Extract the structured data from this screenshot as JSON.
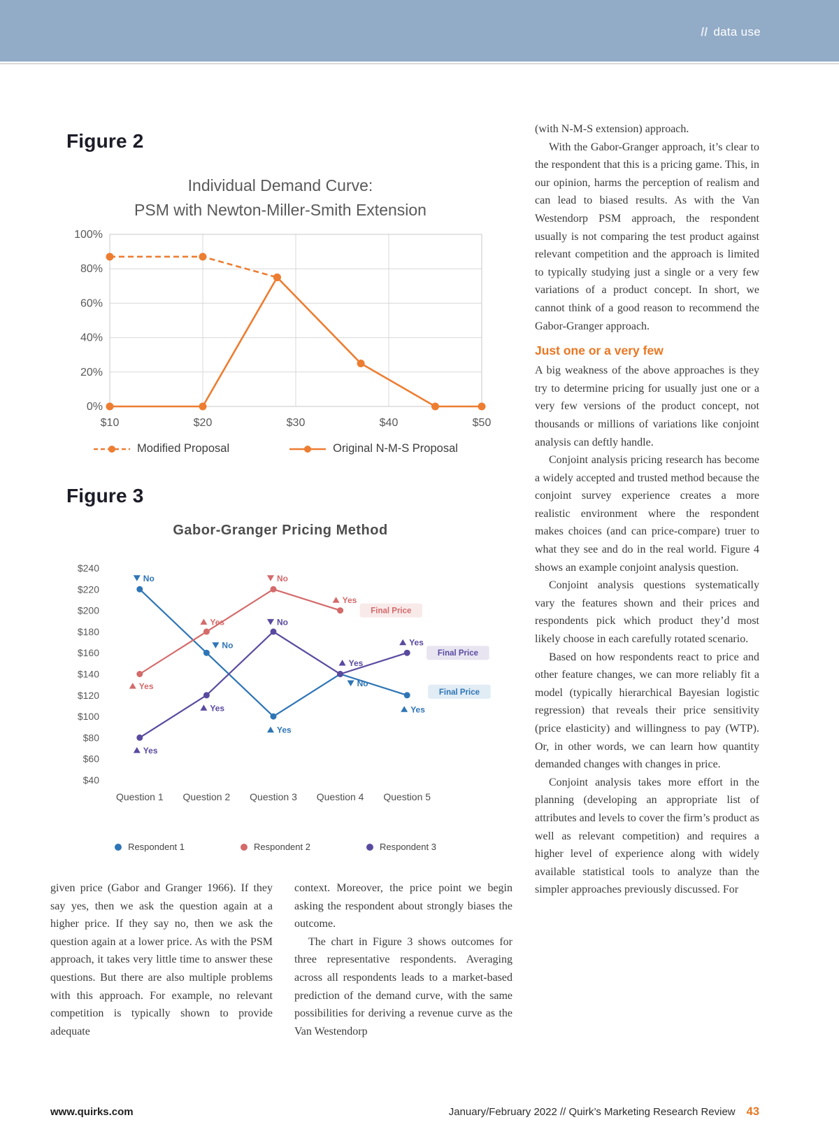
{
  "header": {
    "slashes": "//",
    "label": "data use"
  },
  "figure2": {
    "label": "Figure 2",
    "title_line1": "Individual Demand Curve:",
    "title_line2": "PSM with Newton-Miller-Smith Extension"
  },
  "figure3": {
    "label": "Figure 3",
    "title": "Gabor-Granger Pricing Method"
  },
  "chart_data": [
    {
      "id": "figure2",
      "type": "line",
      "title": "Individual Demand Curve: PSM with Newton-Miller-Smith Extension",
      "x_type": "numeric",
      "x_range": [
        10,
        50
      ],
      "x_ticks": [
        10,
        20,
        30,
        40,
        50
      ],
      "x_tick_labels": [
        "$10",
        "$20",
        "$30",
        "$40",
        "$50"
      ],
      "y_range": [
        0,
        100
      ],
      "y_ticks": [
        0,
        20,
        40,
        60,
        80,
        100
      ],
      "y_tick_labels": [
        "0%",
        "20%",
        "40%",
        "60%",
        "80%",
        "100%"
      ],
      "grid": true,
      "legend_position": "bottom",
      "series": [
        {
          "name": "Modified Proposal",
          "color": "#ED7D31",
          "dashed": true,
          "points": [
            [
              10,
              87
            ],
            [
              20,
              87
            ],
            [
              28,
              75
            ]
          ]
        },
        {
          "name": "Original N-M-S Proposal",
          "color": "#ED7D31",
          "dashed": false,
          "points": [
            [
              10,
              0
            ],
            [
              20,
              0
            ],
            [
              28,
              75
            ],
            [
              37,
              25
            ],
            [
              45,
              0
            ],
            [
              50,
              0
            ]
          ]
        }
      ]
    },
    {
      "id": "figure3",
      "type": "line",
      "title": "Gabor-Granger Pricing Method",
      "x_type": "categorical",
      "categories": [
        "Question 1",
        "Question 2",
        "Question 3",
        "Question 4",
        "Question 5"
      ],
      "y_range": [
        40,
        240
      ],
      "y_ticks": [
        240,
        220,
        200,
        180,
        160,
        140,
        120,
        100,
        80,
        60,
        40
      ],
      "y_tick_labels": [
        "$240",
        "$220",
        "$200",
        "$180",
        "$160",
        "$140",
        "$120",
        "$100",
        "$80",
        "$60",
        "$40"
      ],
      "grid": false,
      "legend_position": "bottom",
      "series": [
        {
          "name": "Respondent 1",
          "color": "#2E75B6",
          "values": [
            220,
            160,
            100,
            140,
            120
          ],
          "annotations": [
            {
              "point": 0,
              "label": "No",
              "marker": "down",
              "dx": -4,
              "dy": -16
            },
            {
              "point": 1,
              "label": "No",
              "marker": "down",
              "dx": 13,
              "dy": -11
            },
            {
              "point": 2,
              "label": "Yes",
              "marker": "up",
              "dx": -4,
              "dy": 19
            },
            {
              "point": 3,
              "label": "No",
              "marker": "down",
              "dx": 15,
              "dy": 13
            },
            {
              "point": 4,
              "label": "Yes",
              "marker": "up",
              "dx": -4,
              "dy": 20
            }
          ],
          "final_price": {
            "point": 4,
            "label": "Final Price",
            "dx": 30,
            "dy": -5
          }
        },
        {
          "name": "Respondent 2",
          "color": "#D46A6A",
          "values": [
            140,
            180,
            220,
            200,
            null
          ],
          "annotations": [
            {
              "point": 0,
              "label": "Yes",
              "marker": "up",
              "dx": -10,
              "dy": 17
            },
            {
              "point": 1,
              "label": "Yes",
              "marker": "up",
              "dx": -4,
              "dy": -14
            },
            {
              "point": 2,
              "label": "No",
              "marker": "down",
              "dx": -4,
              "dy": -16
            },
            {
              "point": 3,
              "label": "Yes",
              "marker": "up",
              "dx": -6,
              "dy": -15
            }
          ],
          "final_price": {
            "point": 3,
            "label": "Final Price",
            "dx": 28,
            "dy": 0
          }
        },
        {
          "name": "Respondent 3",
          "color": "#5A4A9F",
          "values": [
            80,
            120,
            180,
            140,
            160
          ],
          "annotations": [
            {
              "point": 0,
              "label": "Yes",
              "marker": "up",
              "dx": -4,
              "dy": 18
            },
            {
              "point": 1,
              "label": "Yes",
              "marker": "up",
              "dx": -4,
              "dy": 18
            },
            {
              "point": 2,
              "label": "No",
              "marker": "down",
              "dx": -4,
              "dy": -14
            },
            {
              "point": 3,
              "label": "Yes",
              "marker": "up",
              "dx": 3,
              "dy": -16
            },
            {
              "point": 4,
              "label": "Yes",
              "marker": "up",
              "dx": -6,
              "dy": -15
            }
          ],
          "final_price": {
            "point": 4,
            "label": "Final Price",
            "dx": 28,
            "dy": 0
          }
        }
      ]
    }
  ],
  "columns": {
    "left": {
      "p1": "given price (Gabor and Granger 1966). If they say yes, then we ask the question again at a higher price. If they say no, then we ask the question again at a lower price. As with the PSM approach, it takes very little time to answer these questions. But there are also multiple problems with this approach. For example, no relevant competition is typically shown to provide adequate"
    },
    "middle": {
      "p1": "context. Moreover, the price point we begin asking the respondent about strongly biases the outcome.",
      "p2": "The chart in Figure 3 shows outcomes for three representative respondents. Averaging across all respondents leads to a market-based prediction of the demand curve, with the same possibilities for deriving a revenue curve as the Van Westendorp"
    },
    "right": {
      "p1": "(with N-M-S extension) approach.",
      "p2": "With the Gabor-Granger approach, it’s clear to the respondent that this is a pricing game. This, in our opinion, harms the perception of realism and can lead to biased results. As with the Van Westendorp PSM approach, the respondent usually is not comparing the test product against relevant competition and the approach is limited to typically studying just a single or a very few variations of a product concept. In short, we cannot think of a good reason to recommend the Gabor-Granger approach.",
      "heading": "Just one or a very few",
      "p3": "A big weakness of the above approaches is they try to determine pricing for usually just one or a very few versions of the product concept, not thousands or millions of variations like conjoint analysis can deftly handle.",
      "p4": "Conjoint analysis pricing research has become a widely accepted and trusted method because the conjoint survey experience creates a more realistic environment where the respondent makes choices (and can price-compare) truer to what they see and do in the real world. Figure 4 shows an example conjoint analysis question.",
      "p5": "Conjoint analysis questions systematically vary the features shown and their prices and respondents pick which product they’d most likely choose in each carefully rotated scenario.",
      "p6": "Based on how respondents react to price and other feature changes, we can more reliably fit a model (typically hierarchical Bayesian logistic regression) that reveals their price sensitivity (price elasticity) and willingness to pay (WTP). Or, in other words, we can learn how quantity demanded changes with changes in price.",
      "p7": "Conjoint analysis takes more effort in the planning (developing an appropriate list of attributes and levels to cover the firm’s product as well as relevant competition) and requires a higher level of experience along with widely available statistical tools to analyze than the simpler approaches previously discussed. For"
    }
  },
  "footer": {
    "site": "www.quirks.com",
    "issue": "January/February 2022 // Quirk’s Marketing Research Review",
    "page_number": "43"
  },
  "colors": {
    "accent_orange": "#E87722",
    "header_blue": "#92ABC7",
    "chart_orange": "#ED7D31",
    "respondent1_blue": "#2E75B6",
    "respondent2_red": "#D46A6A",
    "respondent3_purple": "#5A4A9F"
  }
}
